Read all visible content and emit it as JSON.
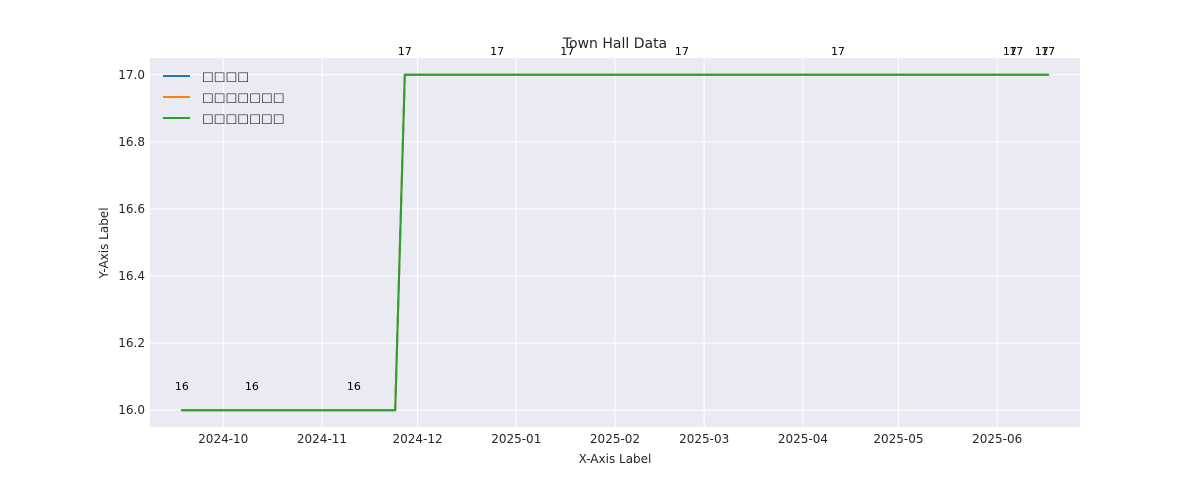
{
  "chart_data": {
    "type": "line",
    "title": "Town Hall Data",
    "xlabel": "X-Axis Label",
    "ylabel": "Y-Axis Label",
    "x_type": "date",
    "xlim": [
      "2024-09-08",
      "2025-06-27"
    ],
    "ylim": [
      15.95,
      17.05
    ],
    "x_ticks": [
      {
        "date": "2024-10-01",
        "label": "2024-10"
      },
      {
        "date": "2024-11-01",
        "label": "2024-11"
      },
      {
        "date": "2024-12-01",
        "label": "2024-12"
      },
      {
        "date": "2025-01-01",
        "label": "2025-01"
      },
      {
        "date": "2025-02-01",
        "label": "2025-02"
      },
      {
        "date": "2025-03-01",
        "label": "2025-03"
      },
      {
        "date": "2025-04-01",
        "label": "2025-04"
      },
      {
        "date": "2025-05-01",
        "label": "2025-05"
      },
      {
        "date": "2025-06-01",
        "label": "2025-06"
      }
    ],
    "y_ticks": [
      {
        "value": 16.0,
        "label": "16.0"
      },
      {
        "value": 16.2,
        "label": "16.2"
      },
      {
        "value": 16.4,
        "label": "16.4"
      },
      {
        "value": 16.6,
        "label": "16.6"
      },
      {
        "value": 16.8,
        "label": "16.8"
      },
      {
        "value": 17.0,
        "label": "17.0"
      }
    ],
    "grid": true,
    "legend_position": "upper-left",
    "background": "#eaeaf2",
    "series": [
      {
        "name": "□□□□",
        "color": "#1f77b4",
        "points": [
          {
            "x": "2024-09-18",
            "y": 16
          },
          {
            "x": "2024-11-24",
            "y": 16
          },
          {
            "x": "2024-11-27",
            "y": 17
          },
          {
            "x": "2025-06-17",
            "y": 17
          }
        ]
      },
      {
        "name": "□□□□□□□",
        "color": "#ff7f0e",
        "points": [
          {
            "x": "2024-09-18",
            "y": 16
          },
          {
            "x": "2024-11-24",
            "y": 16
          },
          {
            "x": "2024-11-27",
            "y": 17
          },
          {
            "x": "2025-06-17",
            "y": 17
          }
        ]
      },
      {
        "name": "□□□□□□□",
        "color": "#2ca02c",
        "points": [
          {
            "x": "2024-09-18",
            "y": 16
          },
          {
            "x": "2024-11-24",
            "y": 16
          },
          {
            "x": "2024-11-27",
            "y": 17
          },
          {
            "x": "2025-06-17",
            "y": 17
          }
        ]
      }
    ],
    "annotations": [
      {
        "x": "2024-09-18",
        "y": 16,
        "text": "16"
      },
      {
        "x": "2024-10-10",
        "y": 16,
        "text": "16"
      },
      {
        "x": "2024-11-11",
        "y": 16,
        "text": "16"
      },
      {
        "x": "2024-11-27",
        "y": 17,
        "text": "17"
      },
      {
        "x": "2024-12-26",
        "y": 17,
        "text": "17"
      },
      {
        "x": "2025-01-17",
        "y": 17,
        "text": "17"
      },
      {
        "x": "2025-02-22",
        "y": 17,
        "text": "17"
      },
      {
        "x": "2025-04-12",
        "y": 17,
        "text": "17"
      },
      {
        "x": "2025-06-05",
        "y": 17,
        "text": "17"
      },
      {
        "x": "2025-06-07",
        "y": 17,
        "text": "17"
      },
      {
        "x": "2025-06-15",
        "y": 17,
        "text": "17"
      },
      {
        "x": "2025-06-17",
        "y": 17,
        "text": "17"
      }
    ]
  }
}
